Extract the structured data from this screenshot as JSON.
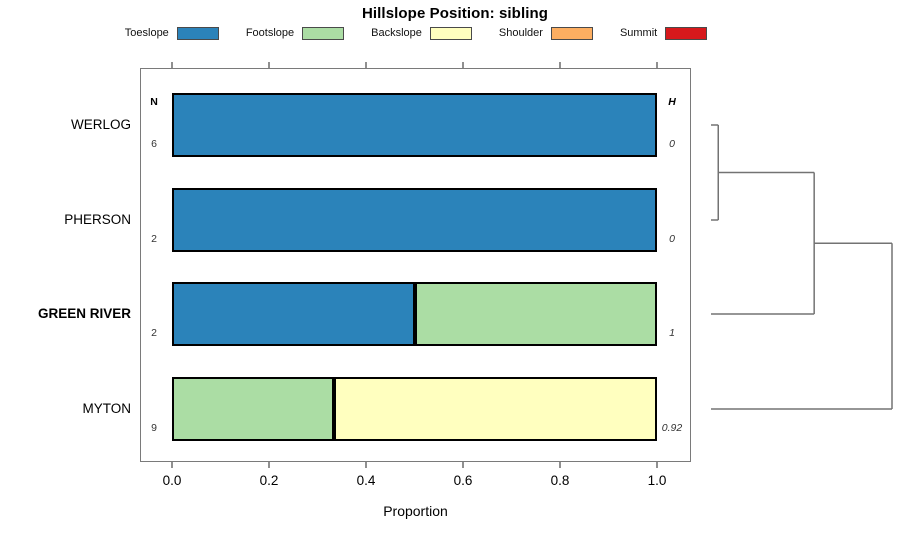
{
  "title": "Hillslope Position: sibling",
  "legend": {
    "items": [
      {
        "label": "Toeslope",
        "color": "#2b83ba"
      },
      {
        "label": "Footslope",
        "color": "#abdda4"
      },
      {
        "label": "Backslope",
        "color": "#ffffbf"
      },
      {
        "label": "Shoulder",
        "color": "#fdae61"
      },
      {
        "label": "Summit",
        "color": "#d7191c"
      }
    ]
  },
  "chart_data": {
    "type": "bar",
    "stacked": true,
    "orientation": "horizontal",
    "title": "Hillslope Position: sibling",
    "xlabel": "Proportion",
    "xlim": [
      0,
      1
    ],
    "x_ticks": [
      {
        "label": "0.0",
        "value": 0.0
      },
      {
        "label": "0.2",
        "value": 0.2
      },
      {
        "label": "0.4",
        "value": 0.4
      },
      {
        "label": "0.6",
        "value": 0.6
      },
      {
        "label": "0.8",
        "value": 0.8
      },
      {
        "label": "1.0",
        "value": 1.0
      }
    ],
    "grid": false,
    "legend_position": "top",
    "n_header": "N",
    "h_header": "H",
    "categories": [
      {
        "label": "WERLOG",
        "bold": false,
        "n": "6",
        "h": "0"
      },
      {
        "label": "PHERSON",
        "bold": false,
        "n": "2",
        "h": "0"
      },
      {
        "label": "GREEN RIVER",
        "bold": true,
        "n": "2",
        "h": "1"
      },
      {
        "label": "MYTON",
        "bold": false,
        "n": "9",
        "h": "0.92"
      }
    ],
    "series": [
      {
        "name": "Toeslope",
        "color": "#2b83ba",
        "values": [
          1,
          1,
          0.5,
          0
        ]
      },
      {
        "name": "Footslope",
        "color": "#abdda4",
        "values": [
          0,
          0,
          0.5,
          0.3333
        ]
      },
      {
        "name": "Backslope",
        "color": "#ffffbf",
        "values": [
          0,
          0,
          0,
          0.6667
        ]
      },
      {
        "name": "Shoulder",
        "color": "#fdae61",
        "values": [
          0,
          0,
          0,
          0
        ]
      },
      {
        "name": "Summit",
        "color": "#d7191c",
        "values": [
          0,
          0,
          0,
          0
        ]
      }
    ],
    "dendrogram": {
      "leaf_order": [
        "WERLOG",
        "PHERSON",
        "GREEN RIVER",
        "MYTON"
      ],
      "tree": {
        "height": 1.0,
        "children": [
          {
            "height": 0.57,
            "children": [
              {
                "height": 0.04,
                "children": [
                  {
                    "leaf": "WERLOG"
                  },
                  {
                    "leaf": "PHERSON"
                  }
                ]
              },
              {
                "leaf": "GREEN RIVER"
              }
            ]
          },
          {
            "leaf": "MYTON"
          }
        ]
      }
    }
  }
}
